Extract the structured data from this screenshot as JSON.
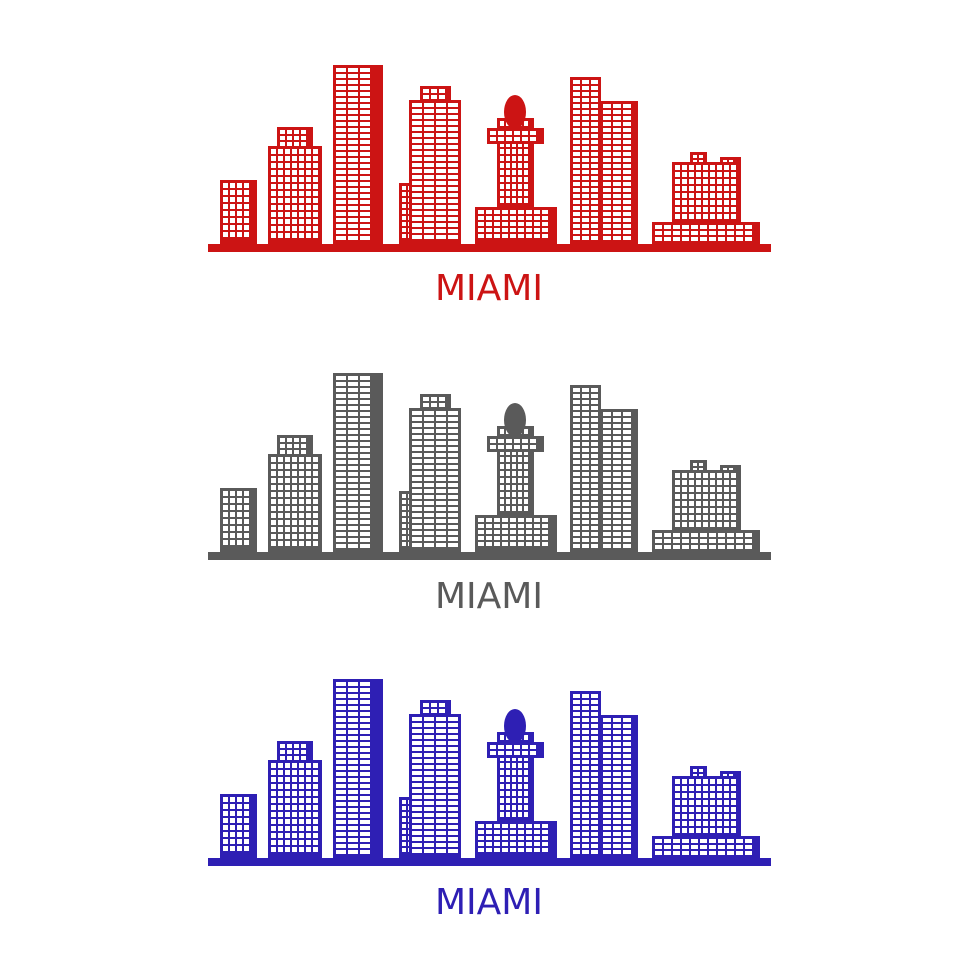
{
  "skylines": [
    {
      "label": "MIAMI",
      "color": "#cc1414"
    },
    {
      "label": "MIAMI",
      "color": "#5a5a5a"
    },
    {
      "label": "MIAMI",
      "color": "#2e1fb4"
    }
  ]
}
